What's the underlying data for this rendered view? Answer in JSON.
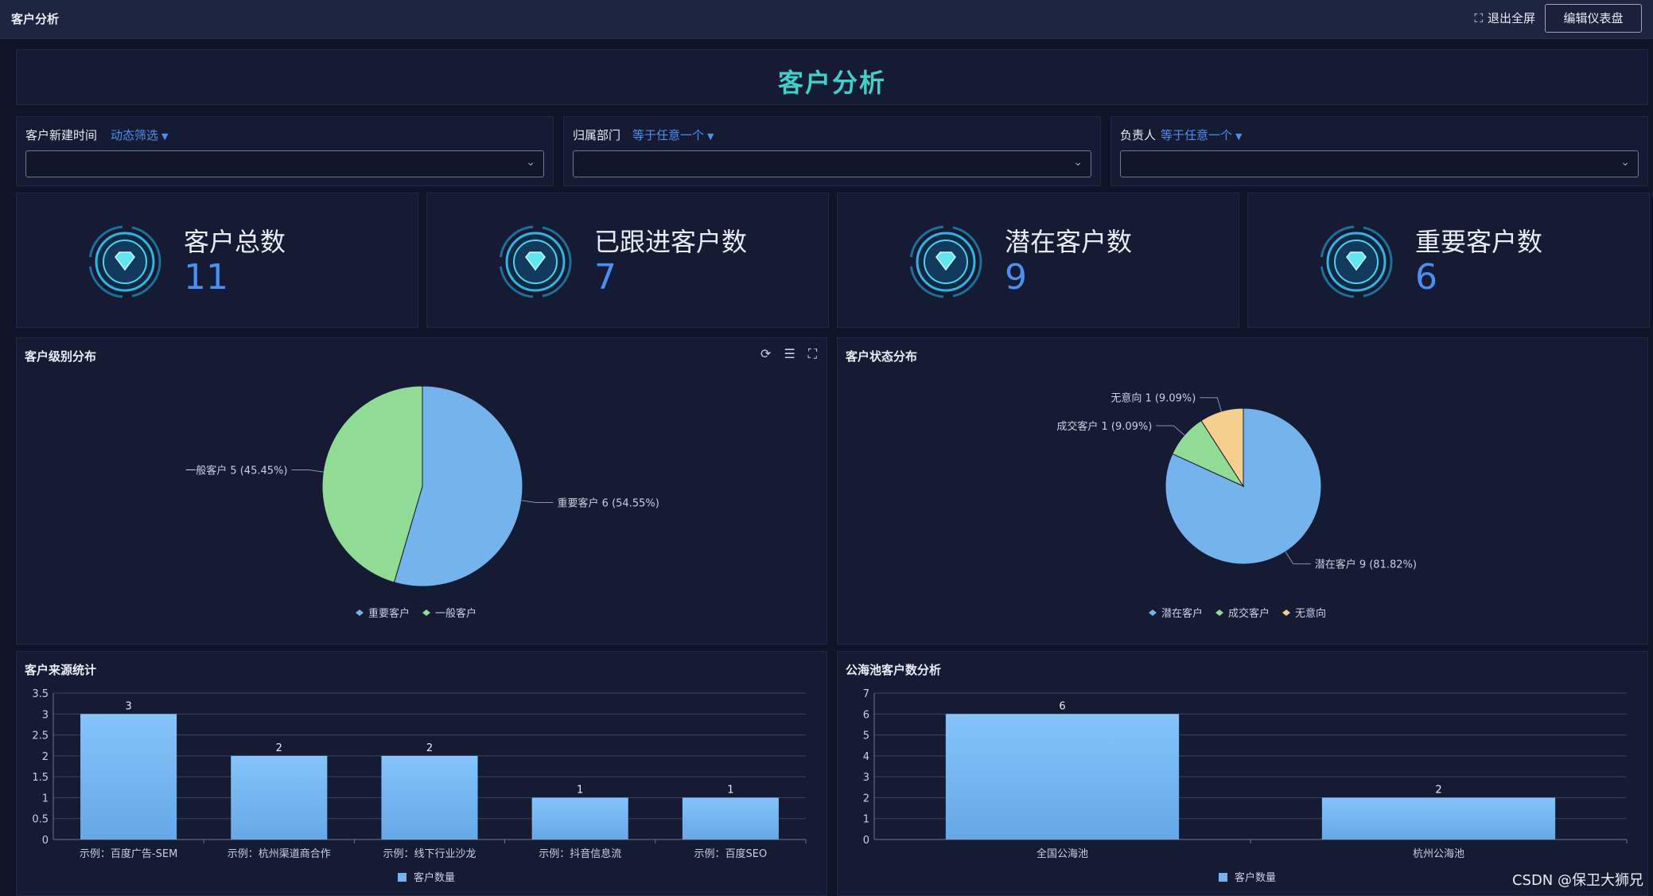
{
  "topbar": {
    "title": "客户分析",
    "exit_fullscreen": "退出全屏",
    "edit_dashboard": "编辑仪表盘"
  },
  "header": {
    "title": "客户分析"
  },
  "filters": [
    {
      "label": "客户新建时间",
      "mode": "动态筛选",
      "value": ""
    },
    {
      "label": "归属部门",
      "mode": "等于任意一个",
      "value": ""
    },
    {
      "label": "负责人",
      "mode": "等于任意一个",
      "value": ""
    }
  ],
  "kpis": [
    {
      "label": "客户总数",
      "value": "11"
    },
    {
      "label": "已跟进客户数",
      "value": "7"
    },
    {
      "label": "潜在客户数",
      "value": "9"
    },
    {
      "label": "重要客户数",
      "value": "6"
    }
  ],
  "colors": {
    "blue": "#74b3ec",
    "green": "#91dc95",
    "yellow": "#f5cf8e",
    "accent": "#4a90f0",
    "title_teal": "#3fd1c7"
  },
  "chart_data": [
    {
      "type": "pie",
      "title": "客户级别分布",
      "slices": [
        {
          "name": "重要客户",
          "value": 6,
          "percent": "54.55%",
          "color": "#74b3ec"
        },
        {
          "name": "一般客户",
          "value": 5,
          "percent": "45.45%",
          "color": "#91dc95"
        }
      ],
      "legend": [
        "重要客户",
        "一般客户"
      ],
      "legend_position": "bottom"
    },
    {
      "type": "pie",
      "title": "客户状态分布",
      "slices": [
        {
          "name": "潜在客户",
          "value": 9,
          "percent": "81.82%",
          "color": "#74b3ec"
        },
        {
          "name": "成交客户",
          "value": 1,
          "percent": "9.09%",
          "color": "#91dc95"
        },
        {
          "name": "无意向",
          "value": 1,
          "percent": "9.09%",
          "color": "#f5cf8e"
        }
      ],
      "legend": [
        "潜在客户",
        "成交客户",
        "无意向"
      ],
      "legend_position": "bottom"
    },
    {
      "type": "bar",
      "title": "客户来源统计",
      "categories": [
        "示例：百度广告-SEM",
        "示例：杭州渠道商合作",
        "示例：线下行业沙龙",
        "示例：抖音信息流",
        "示例：百度SEO"
      ],
      "series": [
        {
          "name": "客户数量",
          "values": [
            3,
            2,
            2,
            1,
            1
          ]
        }
      ],
      "ylim": [
        0,
        3.5
      ],
      "yticks": [
        "0",
        "0.5",
        "1",
        "1.5",
        "2",
        "2.5",
        "3",
        "3.5"
      ],
      "legend_position": "bottom"
    },
    {
      "type": "bar",
      "title": "公海池客户数分析",
      "categories": [
        "全国公海池",
        "杭州公海池"
      ],
      "series": [
        {
          "name": "客户数量",
          "values": [
            6,
            2
          ]
        }
      ],
      "ylim": [
        0,
        7
      ],
      "yticks": [
        "0",
        "1",
        "2",
        "3",
        "4",
        "5",
        "6",
        "7"
      ],
      "legend_position": "bottom"
    }
  ],
  "chart_tools": {
    "refresh_icon": "refresh-icon",
    "sort_icon": "sort-icon",
    "fullscreen_icon": "fullscreen-icon"
  },
  "watermark": "CSDN @保卫大狮兄"
}
